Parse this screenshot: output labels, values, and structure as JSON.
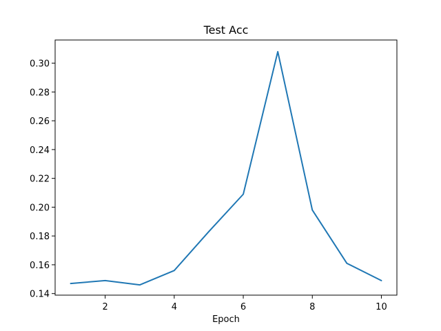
{
  "chart_data": {
    "type": "line",
    "title": "Test Acc",
    "xlabel": "Epoch",
    "ylabel": "",
    "x": [
      1,
      2,
      3,
      4,
      5,
      6,
      7,
      8,
      9,
      10
    ],
    "series": [
      {
        "values": [
          0.147,
          0.149,
          0.146,
          0.156,
          0.183,
          0.209,
          0.308,
          0.198,
          0.161,
          0.149
        ],
        "color": "#1f77b4"
      }
    ],
    "xlim": [
      0.55,
      10.45
    ],
    "ylim": [
      0.1389,
      0.3161
    ],
    "xticks": [
      2,
      4,
      6,
      8,
      10
    ],
    "xtick_labels": [
      "2",
      "4",
      "6",
      "8",
      "10"
    ],
    "yticks": [
      0.14,
      0.16,
      0.18,
      0.2,
      0.22,
      0.24,
      0.26,
      0.28,
      0.3
    ],
    "ytick_labels": [
      "0.14",
      "0.16",
      "0.18",
      "0.20",
      "0.22",
      "0.24",
      "0.26",
      "0.28",
      "0.30"
    ],
    "grid": false,
    "legend": "none"
  }
}
